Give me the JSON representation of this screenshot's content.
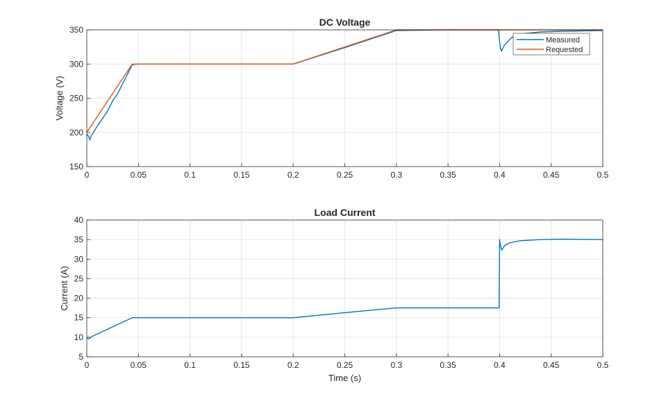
{
  "chart_data": [
    {
      "type": "line",
      "title": "DC Voltage",
      "xlabel": "",
      "ylabel": "Voltage (V)",
      "xlim": [
        0,
        0.5
      ],
      "ylim": [
        150,
        350
      ],
      "xticks": [
        "0",
        "0.05",
        "0.1",
        "0.15",
        "0.2",
        "0.25",
        "0.3",
        "0.35",
        "0.4",
        "0.45",
        "0.5"
      ],
      "yticks": [
        "150",
        "200",
        "250",
        "300",
        "350"
      ],
      "grid": true,
      "legend_position": "top-right",
      "series": [
        {
          "name": "Measured",
          "color": "#0072BD",
          "x": [
            0,
            0.002,
            0.003,
            0.004,
            0.006,
            0.01,
            0.02,
            0.025,
            0.03,
            0.044,
            0.05,
            0.1,
            0.15,
            0.2,
            0.25,
            0.3,
            0.35,
            0.399,
            0.4,
            0.401,
            0.402,
            0.404,
            0.408,
            0.412,
            0.42,
            0.44,
            0.46,
            0.5
          ],
          "y": [
            198,
            193,
            189,
            194,
            199,
            209,
            231,
            246,
            257,
            299,
            300,
            300,
            300,
            300,
            324,
            349,
            350,
            350,
            332,
            322,
            319,
            326,
            333,
            339,
            344,
            347,
            348,
            349
          ]
        },
        {
          "name": "Requested",
          "color": "#D95319",
          "x": [
            0,
            0.044,
            0.2,
            0.3,
            0.5
          ],
          "y": [
            200,
            300,
            300,
            350,
            350
          ]
        }
      ]
    },
    {
      "type": "line",
      "title": "Load Current",
      "xlabel": "Time (s)",
      "ylabel": "Current (A)",
      "xlim": [
        0,
        0.5
      ],
      "ylim": [
        5,
        40
      ],
      "xticks": [
        "0",
        "0.05",
        "0.1",
        "0.15",
        "0.2",
        "0.25",
        "0.3",
        "0.35",
        "0.4",
        "0.45",
        "0.5"
      ],
      "yticks": [
        "5",
        "10",
        "15",
        "20",
        "25",
        "30",
        "35",
        "40"
      ],
      "grid": true,
      "series": [
        {
          "color": "#0072BD",
          "x": [
            0,
            0.002,
            0.005,
            0.044,
            0.05,
            0.1,
            0.15,
            0.2,
            0.25,
            0.3,
            0.35,
            0.3995,
            0.4,
            0.4005,
            0.402,
            0.405,
            0.41,
            0.42,
            0.44,
            0.46,
            0.5
          ],
          "y": [
            9.8,
            9.6,
            10.2,
            15,
            15,
            15,
            15,
            15,
            16.3,
            17.5,
            17.5,
            17.5,
            35,
            34,
            32.3,
            33.5,
            34.2,
            34.7,
            35,
            35.1,
            35
          ]
        }
      ]
    }
  ]
}
